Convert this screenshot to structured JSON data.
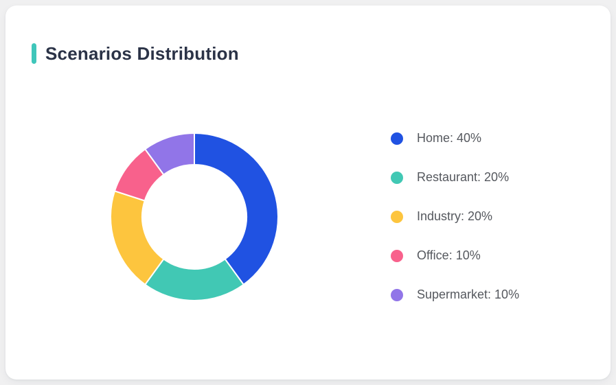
{
  "card": {
    "title": "Scenarios Distribution"
  },
  "colors": {
    "page_background": "#f0f0f1",
    "card_background": "#ffffff",
    "title_accent": "#3fc6ba",
    "title_text": "#2b3347",
    "legend_text": "#55585e",
    "segment_separator": "#ffffff"
  },
  "chart_data": {
    "type": "pie",
    "subtype": "donut",
    "title": "Scenarios Distribution",
    "categories": [
      "Home",
      "Restaurant",
      "Industry",
      "Office",
      "Supermarket"
    ],
    "values": [
      40,
      20,
      20,
      10,
      10
    ],
    "unit": "%",
    "colors": [
      "#2052e2",
      "#41c8b4",
      "#fdc53e",
      "#f8618c",
      "#9175e8"
    ],
    "legend_labels": [
      "Home: 40%",
      "Restaurant: 20%",
      "Industry: 20%",
      "Office: 10%",
      "Supermarket: 10%"
    ],
    "start_angle_deg": 0,
    "direction": "clockwise",
    "inner_radius_ratio": 0.62,
    "legend_position": "right",
    "data_labels": false,
    "grid": false
  }
}
